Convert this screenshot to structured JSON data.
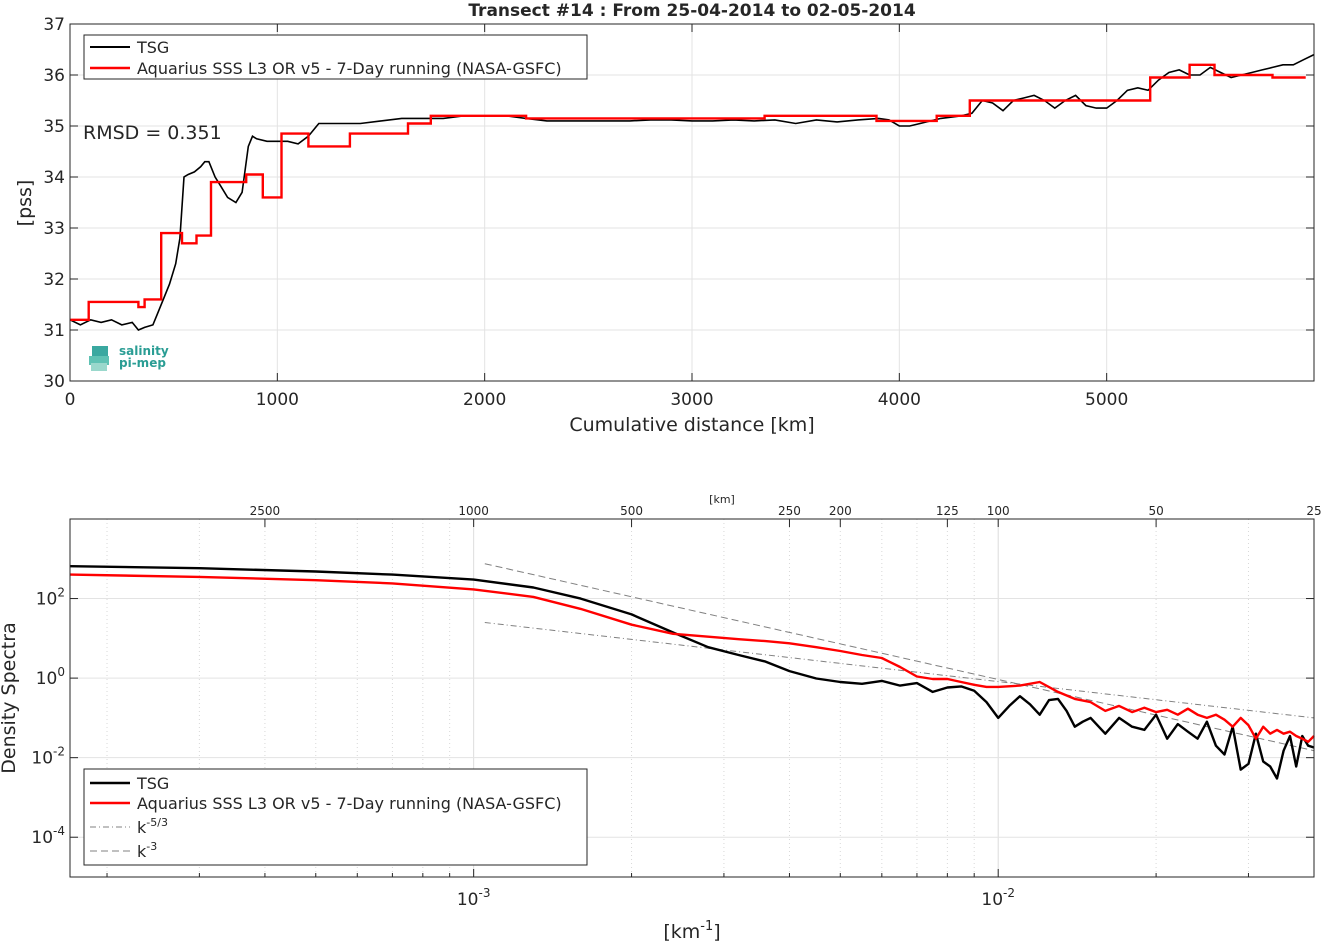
{
  "chart_data": [
    {
      "type": "line",
      "title": "Transect #14 : From 25-04-2014 to 02-05-2014",
      "xlabel": "Cumulative distance [km]",
      "ylabel": "[pss]",
      "xlim": [
        0,
        6000
      ],
      "ylim": [
        30,
        37
      ],
      "xticks": [
        0,
        1000,
        2000,
        3000,
        4000,
        5000
      ],
      "xtick_labels": [
        "0",
        "1000",
        "2000",
        "3000",
        "4000",
        "5000"
      ],
      "yticks": [
        30,
        31,
        32,
        33,
        34,
        35,
        36,
        37
      ],
      "ytick_labels": [
        "30",
        "31",
        "32",
        "33",
        "34",
        "35",
        "36",
        "37"
      ],
      "grid": true,
      "legend_position": "top-left",
      "annotation": "RMSD = 0.351",
      "logo": {
        "line1": "salinity",
        "line2": "pi-mep"
      },
      "series": [
        {
          "name": "TSG",
          "color": "#000000",
          "x": [
            0,
            50,
            100,
            150,
            200,
            250,
            300,
            330,
            360,
            400,
            420,
            450,
            480,
            510,
            530,
            550,
            570,
            600,
            630,
            650,
            670,
            700,
            730,
            760,
            800,
            830,
            860,
            880,
            900,
            950,
            1000,
            1050,
            1100,
            1150,
            1200,
            1250,
            1300,
            1400,
            1500,
            1600,
            1700,
            1800,
            1900,
            2000,
            2100,
            2200,
            2300,
            2400,
            2500,
            2600,
            2700,
            2800,
            2900,
            3000,
            3100,
            3200,
            3300,
            3400,
            3500,
            3600,
            3700,
            3800,
            3900,
            3950,
            4000,
            4050,
            4100,
            4200,
            4300,
            4350,
            4400,
            4450,
            4500,
            4550,
            4600,
            4650,
            4700,
            4750,
            4800,
            4850,
            4900,
            4950,
            5000,
            5050,
            5100,
            5150,
            5200,
            5250,
            5300,
            5350,
            5400,
            5450,
            5500,
            5550,
            5600,
            5650,
            5700,
            5750,
            5800,
            5850,
            5900,
            5950,
            6000
          ],
          "y": [
            31.2,
            31.1,
            31.2,
            31.15,
            31.2,
            31.1,
            31.15,
            31.0,
            31.05,
            31.1,
            31.3,
            31.6,
            31.9,
            32.3,
            32.8,
            34.0,
            34.05,
            34.1,
            34.2,
            34.3,
            34.3,
            34.0,
            33.8,
            33.6,
            33.5,
            33.7,
            34.6,
            34.8,
            34.75,
            34.7,
            34.7,
            34.7,
            34.65,
            34.8,
            35.05,
            35.05,
            35.05,
            35.05,
            35.1,
            35.15,
            35.15,
            35.15,
            35.2,
            35.2,
            35.2,
            35.15,
            35.1,
            35.1,
            35.1,
            35.1,
            35.1,
            35.12,
            35.12,
            35.1,
            35.1,
            35.12,
            35.1,
            35.12,
            35.05,
            35.12,
            35.08,
            35.12,
            35.15,
            35.12,
            35.0,
            35.0,
            35.05,
            35.15,
            35.2,
            35.25,
            35.5,
            35.45,
            35.3,
            35.5,
            35.55,
            35.6,
            35.5,
            35.35,
            35.5,
            35.6,
            35.4,
            35.35,
            35.35,
            35.5,
            35.7,
            35.75,
            35.7,
            35.9,
            36.05,
            36.1,
            36.0,
            36.0,
            36.15,
            36.05,
            35.95,
            36.0,
            36.05,
            36.1,
            36.15,
            36.2,
            36.2,
            36.3,
            36.4
          ]
        },
        {
          "name": "Aquarius SSS L3 OR v5 - 7-Day running (NASA-GSFC)",
          "color": "#ff0000",
          "x": [
            0,
            90,
            90,
            330,
            330,
            360,
            360,
            440,
            440,
            540,
            540,
            610,
            610,
            680,
            680,
            850,
            850,
            930,
            930,
            1020,
            1020,
            1150,
            1150,
            1350,
            1350,
            1630,
            1630,
            1740,
            1740,
            2200,
            2200,
            2970,
            2970,
            3350,
            3350,
            3890,
            3890,
            4180,
            4180,
            4340,
            4340,
            4830,
            4830,
            5210,
            5210,
            5400,
            5400,
            5520,
            5520,
            5800,
            5800,
            5960
          ],
          "y": [
            31.2,
            31.2,
            31.55,
            31.55,
            31.45,
            31.45,
            31.6,
            31.6,
            32.9,
            32.9,
            32.7,
            32.7,
            32.85,
            32.85,
            33.9,
            33.9,
            34.05,
            34.05,
            33.6,
            33.6,
            34.85,
            34.85,
            34.6,
            34.6,
            34.85,
            34.85,
            35.05,
            35.05,
            35.2,
            35.2,
            35.15,
            35.15,
            35.15,
            35.15,
            35.2,
            35.2,
            35.1,
            35.1,
            35.2,
            35.2,
            35.5,
            35.5,
            35.5,
            35.5,
            35.95,
            35.95,
            36.2,
            36.2,
            36.0,
            36.0,
            35.95,
            35.95
          ]
        }
      ]
    },
    {
      "type": "line",
      "title": "",
      "xlabel": "[km⁻¹]",
      "ylabel": "Density Spectra",
      "x_scale": "log",
      "y_scale": "log",
      "xlim": [
        0.00017,
        0.04
      ],
      "ylim": [
        1e-05,
        10000
      ],
      "top_axis_label": "[km]",
      "top_ticks_km": [
        2500,
        1000,
        500,
        250,
        200,
        125,
        100,
        50,
        25
      ],
      "top_tick_labels": [
        "2500",
        "1000",
        "500",
        "250",
        "200",
        "125",
        "100",
        "50",
        "25"
      ],
      "xtick_labels": [
        "10⁻³",
        "10⁻²"
      ],
      "ytick_labels": [
        "10²",
        "10⁰",
        "10⁻²",
        "10⁻⁴"
      ],
      "grid": true,
      "legend_position": "bottom-left",
      "series": [
        {
          "name": "TSG",
          "color": "#000000",
          "x": [
            0.00017,
            0.0003,
            0.0005,
            0.0007,
            0.001,
            0.0013,
            0.0016,
            0.002,
            0.0024,
            0.0028,
            0.0032,
            0.0036,
            0.004,
            0.0045,
            0.005,
            0.0055,
            0.006,
            0.0065,
            0.007,
            0.0075,
            0.008,
            0.0085,
            0.009,
            0.0095,
            0.01,
            0.0105,
            0.011,
            0.0115,
            0.012,
            0.0125,
            0.013,
            0.0135,
            0.014,
            0.0145,
            0.015,
            0.016,
            0.017,
            0.018,
            0.019,
            0.02,
            0.021,
            0.022,
            0.023,
            0.024,
            0.025,
            0.026,
            0.027,
            0.028,
            0.029,
            0.03,
            0.031,
            0.032,
            0.033,
            0.034,
            0.035,
            0.036,
            0.037,
            0.038,
            0.039,
            0.04
          ],
          "y": [
            650,
            580,
            480,
            400,
            300,
            190,
            100,
            40,
            14,
            6,
            3.8,
            2.6,
            1.5,
            0.98,
            0.8,
            0.72,
            0.85,
            0.65,
            0.75,
            0.45,
            0.58,
            0.62,
            0.48,
            0.25,
            0.1,
            0.2,
            0.35,
            0.22,
            0.12,
            0.28,
            0.3,
            0.15,
            0.06,
            0.08,
            0.1,
            0.04,
            0.1,
            0.06,
            0.05,
            0.12,
            0.03,
            0.07,
            0.045,
            0.03,
            0.08,
            0.02,
            0.012,
            0.06,
            0.005,
            0.007,
            0.04,
            0.008,
            0.006,
            0.003,
            0.015,
            0.035,
            0.006,
            0.035,
            0.02,
            0.018
          ]
        },
        {
          "name": "Aquarius SSS L3 OR v5 - 7-Day running (NASA-GSFC)",
          "color": "#ff0000",
          "x": [
            0.00017,
            0.0003,
            0.0005,
            0.0007,
            0.001,
            0.0013,
            0.0016,
            0.002,
            0.0024,
            0.0028,
            0.0032,
            0.0036,
            0.004,
            0.0045,
            0.005,
            0.0055,
            0.006,
            0.0065,
            0.007,
            0.0075,
            0.008,
            0.0085,
            0.009,
            0.0095,
            0.01,
            0.011,
            0.012,
            0.013,
            0.014,
            0.015,
            0.016,
            0.017,
            0.018,
            0.019,
            0.02,
            0.021,
            0.022,
            0.023,
            0.024,
            0.025,
            0.026,
            0.027,
            0.028,
            0.029,
            0.03,
            0.031,
            0.032,
            0.033,
            0.034,
            0.035,
            0.036,
            0.037,
            0.038,
            0.039,
            0.04
          ],
          "y": [
            400,
            350,
            290,
            240,
            170,
            110,
            55,
            22,
            13,
            11,
            9.5,
            8.5,
            7.5,
            6,
            4.8,
            3.8,
            3.2,
            1.9,
            1.1,
            0.95,
            0.95,
            0.8,
            0.68,
            0.6,
            0.6,
            0.65,
            0.8,
            0.45,
            0.3,
            0.25,
            0.15,
            0.2,
            0.14,
            0.18,
            0.14,
            0.16,
            0.12,
            0.17,
            0.12,
            0.1,
            0.12,
            0.09,
            0.06,
            0.1,
            0.065,
            0.03,
            0.06,
            0.04,
            0.05,
            0.04,
            0.045,
            0.035,
            0.03,
            0.025,
            0.035
          ]
        },
        {
          "name": "k⁻⁵ᐟ³",
          "color": "#808080",
          "dash": "dashdot",
          "x": [
            0.00105,
            0.04
          ],
          "y": [
            25,
            0.1
          ]
        },
        {
          "name": "k⁻³",
          "color": "#808080",
          "dash": "dash",
          "x": [
            0.00105,
            0.04
          ],
          "y": [
            750,
            0.015
          ]
        }
      ]
    }
  ],
  "legend_top": [
    "TSG",
    "Aquarius SSS L3 OR v5 - 7-Day running (NASA-GSFC)"
  ],
  "legend_bottom": [
    {
      "label": "TSG",
      "exp": ""
    },
    {
      "label": "Aquarius SSS L3 OR v5 - 7-Day running (NASA-GSFC)",
      "exp": ""
    },
    {
      "label": "k",
      "exp": "-5/3"
    },
    {
      "label": "k",
      "exp": "-3"
    }
  ],
  "bottom_yticks": [
    {
      "base": "10",
      "exp": "2",
      "value": 100
    },
    {
      "base": "10",
      "exp": "0",
      "value": 1
    },
    {
      "base": "10",
      "exp": "-2",
      "value": 0.01
    },
    {
      "base": "10",
      "exp": "-4",
      "value": 0.0001
    }
  ],
  "bottom_xticks": [
    {
      "base": "10",
      "exp": "-3",
      "value": 0.001
    },
    {
      "base": "10",
      "exp": "-2",
      "value": 0.01
    }
  ],
  "bottom_xlabel": {
    "base": "[km",
    "exp": "-1",
    "close": "]"
  }
}
